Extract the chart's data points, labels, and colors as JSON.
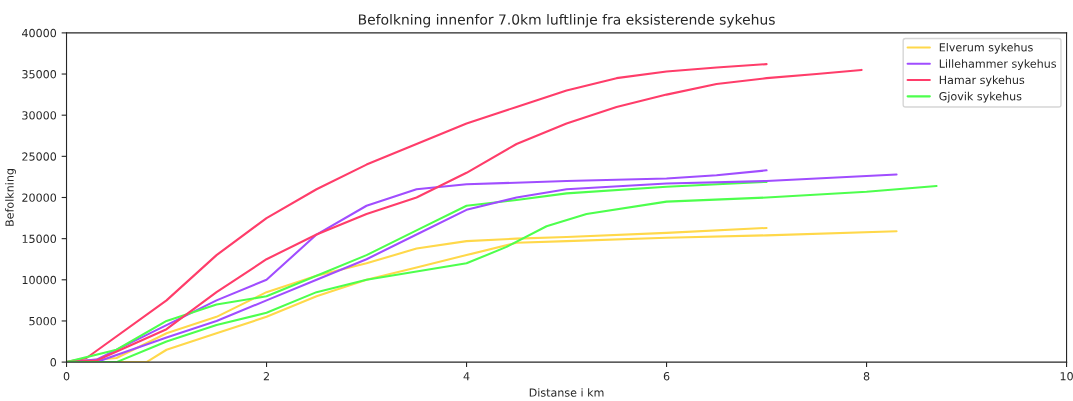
{
  "chart_data": {
    "type": "line",
    "title": "Befolkning innenfor 7.0km luftlinje fra eksisterende sykehus",
    "xlabel": "Distanse i km",
    "ylabel": "Befolkning",
    "xlim": [
      0,
      10
    ],
    "xticks": [
      0,
      2,
      4,
      6,
      8,
      10
    ],
    "ylim": [
      0,
      40000
    ],
    "yticks": [
      0,
      5000,
      10000,
      15000,
      20000,
      25000,
      30000,
      35000,
      40000
    ],
    "legend": "top right",
    "grid": false,
    "series": [
      {
        "name": "Elverum sykehus",
        "color": "#ffd84a",
        "x": [
          0,
          0.5,
          1,
          1.5,
          2,
          2.5,
          3,
          3.5,
          4,
          4.5,
          5,
          6,
          7
        ],
        "values": [
          0,
          500,
          3500,
          5500,
          8500,
          10500,
          12000,
          13800,
          14700,
          15000,
          15200,
          15700,
          16300
        ]
      },
      {
        "name": "Lillehammer sykehus",
        "color": "#a04dff",
        "x": [
          0,
          0.3,
          1,
          1.5,
          2,
          2.5,
          3,
          3.5,
          4,
          5,
          6,
          6.5,
          7
        ],
        "values": [
          0,
          300,
          4500,
          7500,
          10000,
          15500,
          19000,
          21000,
          21600,
          22000,
          22300,
          22700,
          23300
        ]
      },
      {
        "name": "Hamar sykehus",
        "color": "#ff3d6a",
        "x": [
          0,
          0.2,
          1,
          1.5,
          2,
          2.5,
          3,
          3.5,
          4,
          4.5,
          5,
          5.5,
          6,
          6.5,
          7
        ],
        "values": [
          0,
          500,
          7500,
          13000,
          17500,
          21000,
          24000,
          26500,
          29000,
          31000,
          33000,
          34500,
          35300,
          35800,
          36200
        ]
      },
      {
        "name": "Gjovik sykehus",
        "color": "#4dff4d",
        "x": [
          0,
          0.5,
          1,
          1.5,
          2,
          2.5,
          3,
          3.5,
          4,
          4.5,
          5,
          6,
          7
        ],
        "values": [
          0,
          1500,
          5000,
          7000,
          8000,
          10500,
          13000,
          16000,
          19000,
          19700,
          20500,
          21300,
          21900
        ]
      },
      {
        "color": "#ffd84a",
        "x": [
          0,
          0.8,
          1,
          1.5,
          2,
          2.5,
          3,
          3.5,
          4,
          4.5,
          5,
          6,
          7,
          8.3
        ],
        "values": [
          0,
          0,
          1500,
          3500,
          5500,
          8000,
          10000,
          11500,
          13000,
          14500,
          14700,
          15100,
          15400,
          15900
        ]
      },
      {
        "color": "#a04dff",
        "x": [
          0,
          0.3,
          1,
          1.5,
          2,
          2.5,
          3,
          3.5,
          4,
          4.5,
          5,
          6,
          7,
          7.5,
          8.3
        ],
        "values": [
          0,
          0,
          3000,
          5000,
          7500,
          10000,
          12500,
          15500,
          18500,
          20000,
          21000,
          21700,
          22000,
          22300,
          22800
        ]
      },
      {
        "color": "#ff3d6a",
        "x": [
          0,
          0.3,
          1,
          1.5,
          2,
          2.5,
          3,
          3.5,
          4,
          4.5,
          5,
          5.5,
          6,
          6.5,
          7,
          7.5,
          7.95
        ],
        "values": [
          0,
          200,
          4000,
          8500,
          12500,
          15500,
          18000,
          20000,
          23000,
          26500,
          29000,
          31000,
          32500,
          33800,
          34500,
          35000,
          35500
        ]
      },
      {
        "color": "#4dff4d",
        "x": [
          0,
          0.5,
          1,
          1.5,
          2,
          2.5,
          3,
          3.5,
          4,
          4.4,
          4.8,
          5.2,
          6,
          7,
          8,
          8.7
        ],
        "values": [
          0,
          0,
          2500,
          4500,
          6000,
          8500,
          10000,
          11000,
          12000,
          14000,
          16500,
          18000,
          19500,
          20000,
          20700,
          21400
        ]
      }
    ]
  }
}
